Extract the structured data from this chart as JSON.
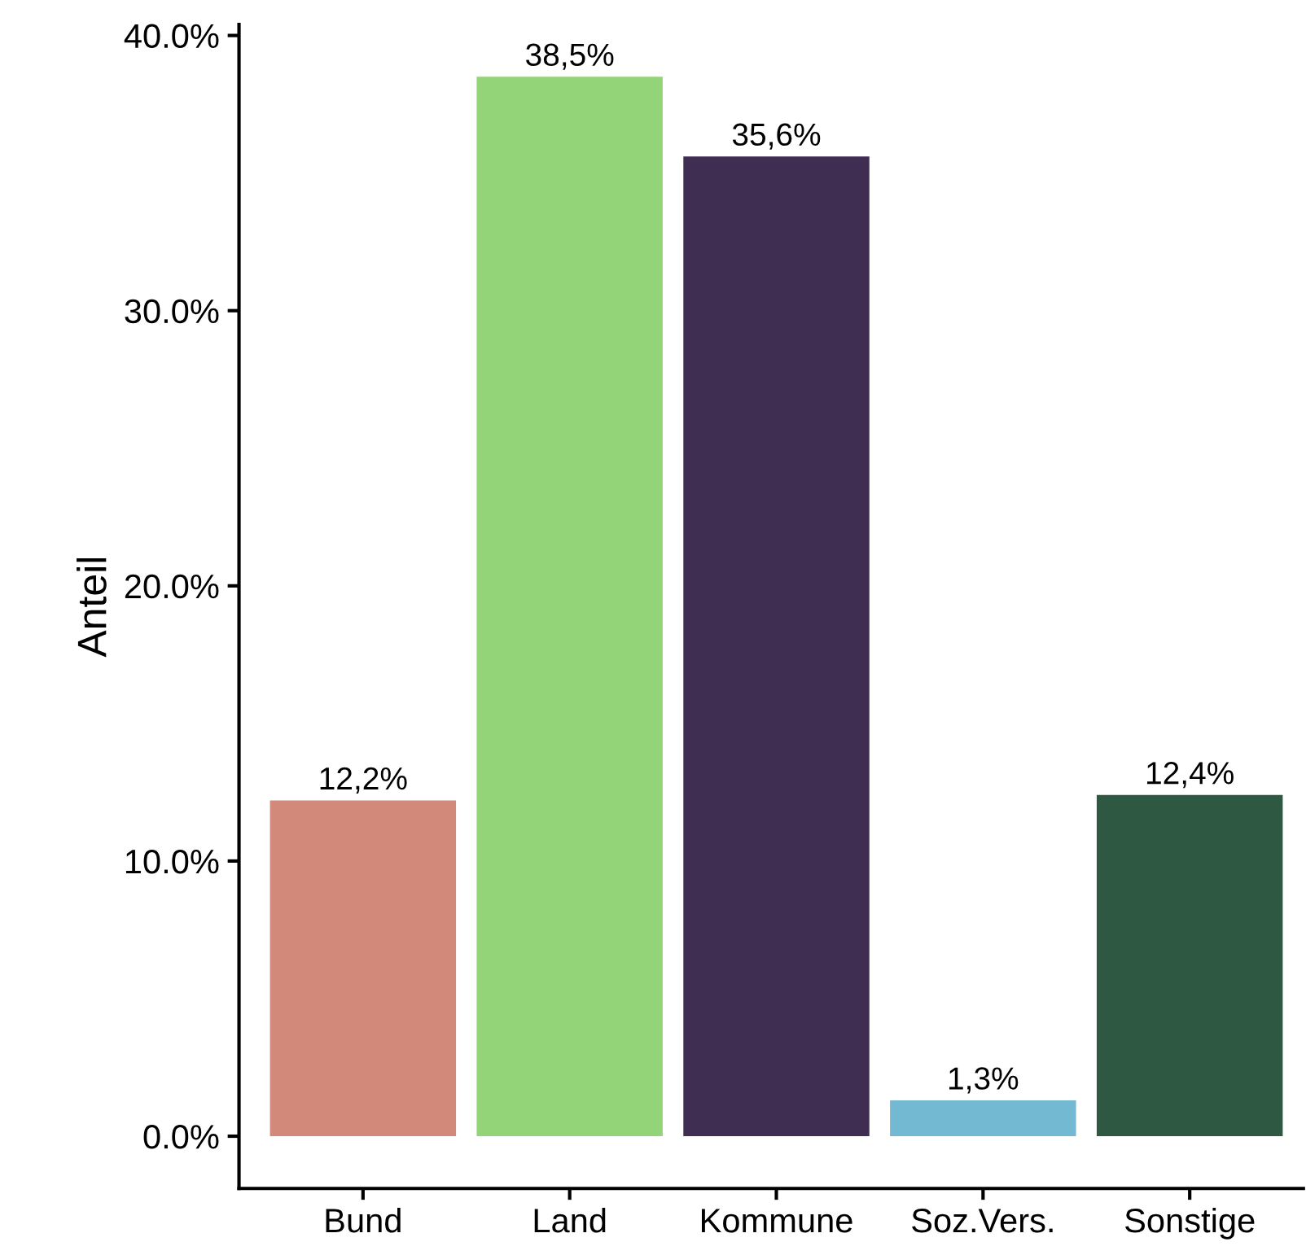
{
  "chart_data": {
    "type": "bar",
    "ylabel": "Anteil",
    "categories": [
      "Bund",
      "Land",
      "Kommune",
      "Soz.Vers.",
      "Sonstige"
    ],
    "values": [
      12.2,
      38.5,
      35.6,
      1.3,
      12.4
    ],
    "colors": [
      "#d2897a",
      "#93d478",
      "#3f2d52",
      "#74b9d2",
      "#2e5842"
    ],
    "value_labels": [
      "12,2%",
      "38,5%",
      "35,6%",
      "1,3%",
      "12,4%"
    ],
    "ylim": [
      -1.9,
      40.4
    ],
    "yticks": [
      {
        "value": 0,
        "label": "0.0%"
      },
      {
        "value": 10,
        "label": "10.0%"
      },
      {
        "value": 20,
        "label": "20.0%"
      },
      {
        "value": 30,
        "label": "30.0%"
      },
      {
        "value": 40,
        "label": "40.0%"
      }
    ],
    "grid": false,
    "legend": false
  }
}
